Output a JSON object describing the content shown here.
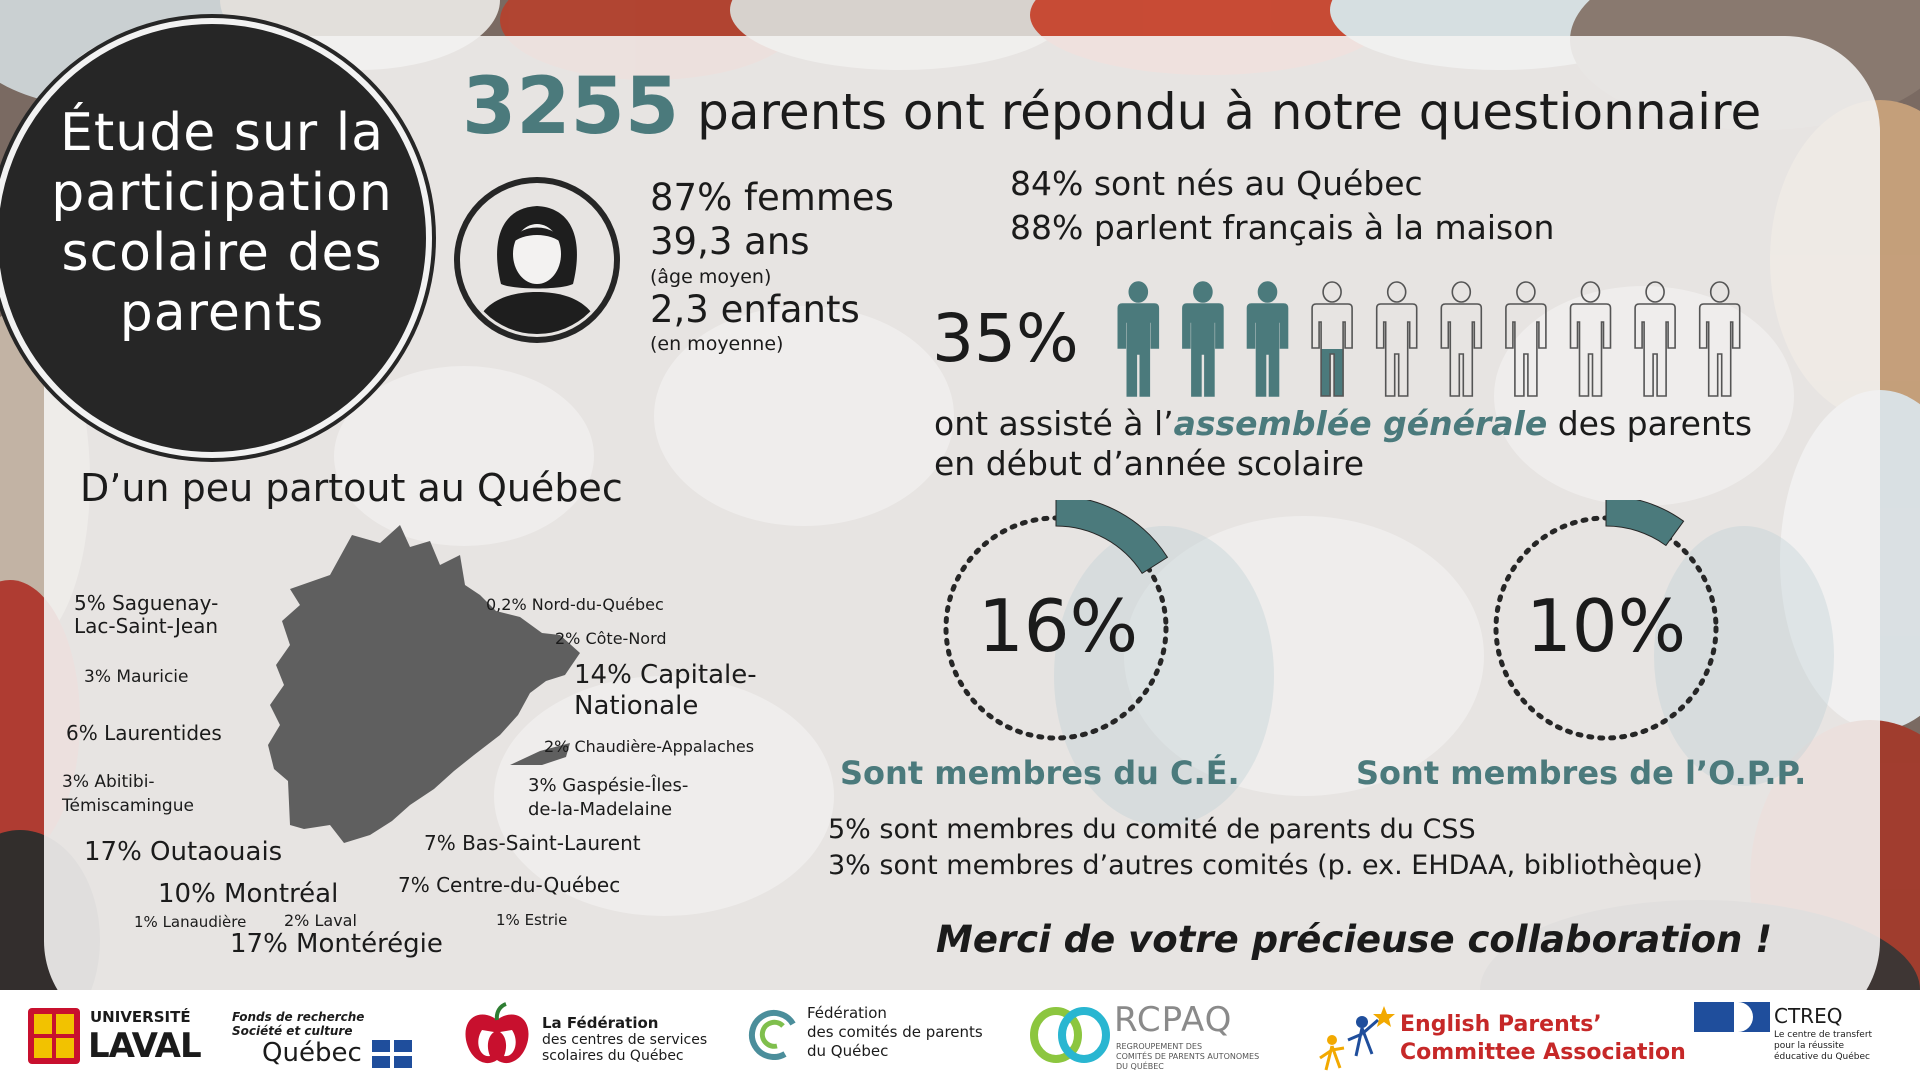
{
  "title": "Étude sur la participation scolaire des parents",
  "headline": {
    "count": "3255",
    "text": "parents ont répondu à notre questionnaire"
  },
  "profile": {
    "women": "87% femmes",
    "age": "39,3 ans",
    "age_note": "(âge moyen)",
    "children": "2,3 enfants",
    "children_note": "(en moyenne)"
  },
  "origin": {
    "born_quebec": "84% sont nés au Québec",
    "french_home": "88% parlent français à la maison"
  },
  "assembly": {
    "percent": "35%",
    "value": 0.35,
    "text_before": "ont assisté à l’",
    "highlight": "assemblée générale",
    "text_after": " des parents",
    "line2": "en début d’année scolaire"
  },
  "rings": [
    {
      "percent": "16%",
      "value": 0.16,
      "label": "Sont membres du C.É."
    },
    {
      "percent": "10%",
      "value": 0.1,
      "label": "Sont membres de l’O.P.P."
    }
  ],
  "committees": {
    "css": "5% sont membres du comité de parents du CSS",
    "other": "3% sont membres d’autres comités (p. ex. EHDAA, bibliothèque)"
  },
  "thanks": "Merci de votre précieuse collaboration !",
  "regions": {
    "title": "D’un peu partout au Québec",
    "saguenay": "5% Saguenay-\nLac-Saint-Jean",
    "mauricie": "3% Mauricie",
    "laurentides": "6% Laurentides",
    "abitibi": "3% Abitibi-\nTémiscamingue",
    "outaouais": "17% Outaouais",
    "montreal": "10% Montréal",
    "lanaudiere": "1% Lanaudière",
    "laval": "2% Laval",
    "monteregie": "17% Montérégie",
    "nord": "0,2% Nord-du-Québec",
    "cote_nord": "2% Côte-Nord",
    "capitale": "14% Capitale-\nNationale",
    "chaudiere": "2% Chaudière-Appalaches",
    "gaspesie": "3% Gaspésie-Îles-\nde-la-Madelaine",
    "bas_st_laurent": "7% Bas-Saint-Laurent",
    "centre_quebec": "7% Centre-du-Québec",
    "estrie": "1% Estrie"
  },
  "logos": {
    "laval_1": "UNIVERSITÉ",
    "laval_2": "LAVAL",
    "frq_1": "Fonds de recherche",
    "frq_2": "Société et culture",
    "frq_3": "Québec",
    "fcss_1": "La Fédération",
    "fcss_2": "des centres de services",
    "fcss_3": "scolaires du Québec",
    "fcpq_1": "Fédération",
    "fcpq_2": "des comités de parents",
    "fcpq_3": "du Québec",
    "rcpaq_1": "RCPAQ",
    "rcpaq_2": "REGROUPEMENT DES",
    "rcpaq_3": "COMITÉS DE PARENTS AUTONOMES",
    "rcpaq_4": "DU QUÉBEC",
    "epca_1": "English Parents’",
    "epca_2": "Committee Association",
    "ctreq_1": "CTREQ",
    "ctreq_2": "Le centre de transfert",
    "ctreq_3": "pour la réussite",
    "ctreq_4": "éducative du Québec"
  },
  "colors": {
    "teal": "#4b7a7c",
    "dark": "#262626",
    "map": "#5f5f5f",
    "laval_red": "#c8102e",
    "quebec_blue": "#1f4e9c",
    "epca_red": "#c62828"
  }
}
